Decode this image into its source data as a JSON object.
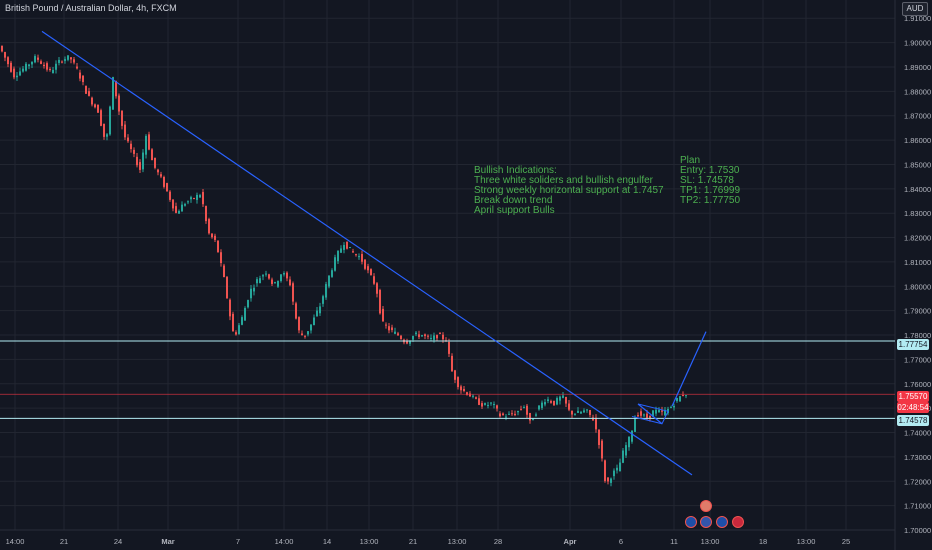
{
  "header": {
    "symbol_title": "British Pound / Australian Dollar, 4h, FXCM",
    "currency_badge": "AUD"
  },
  "notes": {
    "bullish_lines": [
      "Bullish Indications:",
      "Three white soliders and bullish engulfer",
      "Strong weekly horizontal support at 1.7457",
      "Break down trend",
      "April support Bulls"
    ],
    "plan_lines": [
      "Plan",
      "Entry: 1.7530",
      "SL: 1.74578",
      "TP1: 1.76999",
      "TP2: 1.77750"
    ]
  },
  "price_tags": {
    "tp2_level": "1.77754",
    "current_price": "1.75570",
    "countdown": "02:48:54",
    "sl_level": "1.74578"
  },
  "colors": {
    "background": "#131722",
    "grid": "#222631",
    "bull_candle": "#26a69a",
    "bear_candle": "#ef5350",
    "trendline": "#2962ff",
    "level_line": "#b2ebf2",
    "current_price_line": "#f23645",
    "annotation_text": "#4caf50",
    "axis_text": "#b2b5be"
  },
  "icons": [
    "calendar-event-icon",
    "au-flag-icon",
    "us-flag-icon",
    "au-flag-icon",
    "gb-flag-icon"
  ],
  "chart_data": {
    "type": "candlestick",
    "title": "British Pound / Australian Dollar, 4h, FXCM",
    "x_tick_labels": [
      "14:00",
      "21",
      "24",
      "Mar",
      "7",
      "14:00",
      "14",
      "13:00",
      "21",
      "13:00",
      "28",
      "Apr",
      "6",
      "11",
      "13:00",
      "18",
      "13:00",
      "25"
    ],
    "y_tick_labels": [
      "1.70000",
      "1.71000",
      "1.72000",
      "1.73000",
      "1.74000",
      "1.75000",
      "1.76000",
      "1.77000",
      "1.78000",
      "1.79000",
      "1.80000",
      "1.81000",
      "1.82000",
      "1.83000",
      "1.84000",
      "1.85000",
      "1.86000",
      "1.87000",
      "1.88000",
      "1.89000",
      "1.90000",
      "1.91000"
    ],
    "ylim": [
      1.6995,
      1.9175
    ],
    "grid": true,
    "price_path_approx": [
      [
        0,
        1.8995
      ],
      [
        16,
        1.8865
      ],
      [
        26,
        1.8895
      ],
      [
        38,
        1.894
      ],
      [
        52,
        1.888
      ],
      [
        63,
        1.893
      ],
      [
        72,
        1.894
      ],
      [
        80,
        1.888
      ],
      [
        90,
        1.878
      ],
      [
        100,
        1.872
      ],
      [
        108,
        1.858
      ],
      [
        115,
        1.885
      ],
      [
        120,
        1.874
      ],
      [
        126,
        1.862
      ],
      [
        134,
        1.855
      ],
      [
        142,
        1.848
      ],
      [
        148,
        1.862
      ],
      [
        155,
        1.85
      ],
      [
        162,
        1.845
      ],
      [
        170,
        1.838
      ],
      [
        178,
        1.83
      ],
      [
        186,
        1.834
      ],
      [
        195,
        1.836
      ],
      [
        203,
        1.838
      ],
      [
        210,
        1.822
      ],
      [
        218,
        1.818
      ],
      [
        226,
        1.803
      ],
      [
        232,
        1.788
      ],
      [
        236,
        1.779
      ],
      [
        244,
        1.787
      ],
      [
        252,
        1.798
      ],
      [
        260,
        1.803
      ],
      [
        268,
        1.806
      ],
      [
        276,
        1.8
      ],
      [
        284,
        1.806
      ],
      [
        292,
        1.801
      ],
      [
        300,
        1.782
      ],
      [
        306,
        1.779
      ],
      [
        314,
        1.785
      ],
      [
        322,
        1.792
      ],
      [
        330,
        1.803
      ],
      [
        338,
        1.812
      ],
      [
        346,
        1.818
      ],
      [
        354,
        1.814
      ],
      [
        362,
        1.812
      ],
      [
        370,
        1.806
      ],
      [
        378,
        1.8
      ],
      [
        384,
        1.785
      ],
      [
        392,
        1.782
      ],
      [
        400,
        1.78
      ],
      [
        408,
        1.777
      ],
      [
        416,
        1.78
      ],
      [
        424,
        1.78
      ],
      [
        432,
        1.778
      ],
      [
        440,
        1.78
      ],
      [
        448,
        1.778
      ],
      [
        454,
        1.765
      ],
      [
        462,
        1.758
      ],
      [
        470,
        1.756
      ],
      [
        478,
        1.753
      ],
      [
        486,
        1.751
      ],
      [
        494,
        1.752
      ],
      [
        502,
        1.747
      ],
      [
        510,
        1.747
      ],
      [
        518,
        1.748
      ],
      [
        526,
        1.751
      ],
      [
        532,
        1.744
      ],
      [
        540,
        1.75
      ],
      [
        548,
        1.754
      ],
      [
        556,
        1.752
      ],
      [
        564,
        1.755
      ],
      [
        572,
        1.748
      ],
      [
        580,
        1.748
      ],
      [
        588,
        1.749
      ],
      [
        596,
        1.745
      ],
      [
        602,
        1.734
      ],
      [
        608,
        1.718
      ],
      [
        614,
        1.723
      ],
      [
        620,
        1.725
      ],
      [
        626,
        1.733
      ],
      [
        632,
        1.738
      ],
      [
        638,
        1.748
      ],
      [
        644,
        1.747
      ],
      [
        650,
        1.746
      ],
      [
        656,
        1.749
      ],
      [
        664,
        1.748
      ],
      [
        672,
        1.75
      ],
      [
        680,
        1.754
      ],
      [
        686,
        1.756
      ]
    ],
    "horizontal_levels": [
      1.77754,
      1.7557,
      1.74578
    ],
    "trendlines": [
      {
        "name": "downtrend",
        "from": [
          42,
          1.9046
        ],
        "to": [
          692,
          1.7226
        ]
      },
      {
        "name": "breakout-projection",
        "from": [
          672,
          1.7508
        ],
        "to": [
          706,
          1.7814
        ]
      },
      {
        "name": "flag-channel",
        "from": [
          638,
          1.7517
        ],
        "to": [
          662,
          1.7436
        ]
      }
    ]
  }
}
